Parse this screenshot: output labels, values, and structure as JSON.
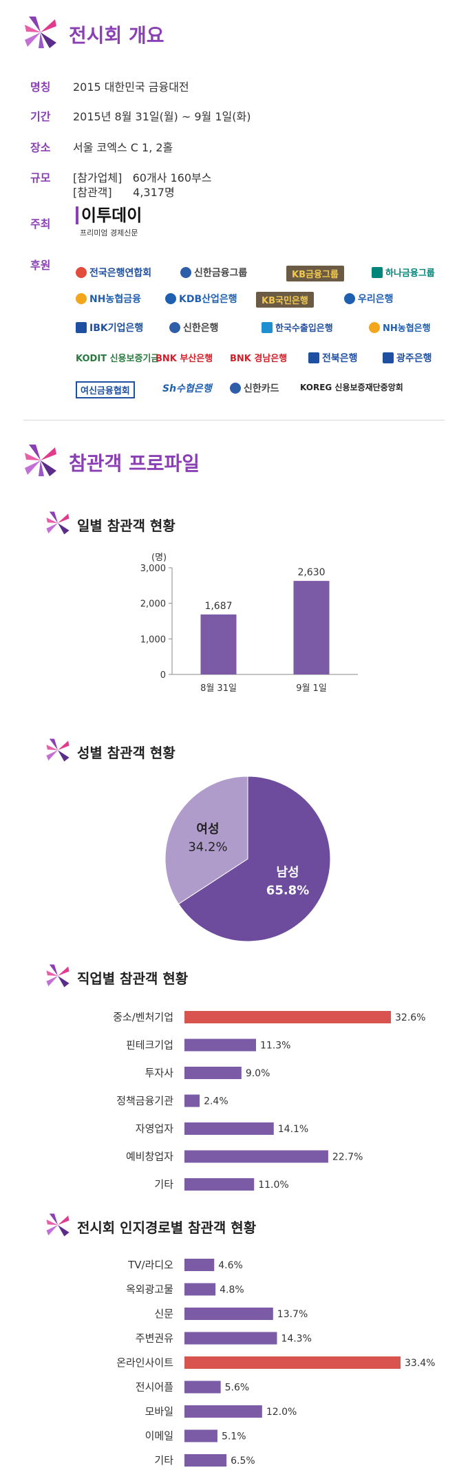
{
  "overview": {
    "title": "전시회 개요",
    "rows": [
      {
        "label": "명칭",
        "value": "2015 대한민국 금융대전"
      },
      {
        "label": "기간",
        "value": "2015년 8월 31일(월) ~ 9월 1일(화)"
      },
      {
        "label": "장소",
        "value": "서울 코엑스 C 1, 2홀"
      },
      {
        "label": "규모",
        "value": "[참가업체]   60개사 160부스"
      },
      {
        "label": "",
        "value": "[참관객]      4,317명"
      },
      {
        "label": "주최",
        "value": ""
      },
      {
        "label": "후원",
        "value": ""
      }
    ],
    "organizer": {
      "name": "이투데이",
      "tagline": "프리미엄 경제신문"
    },
    "sponsors": [
      {
        "name": "전국은행연합회",
        "color": "#1f4fa0"
      },
      {
        "name": "신한금융그룹",
        "color": "#444444"
      },
      {
        "name": "KB금융그룹",
        "color": "#7a6a4f"
      },
      {
        "name": "하나금융그룹",
        "color": "#00857a"
      },
      {
        "name": "NH농협금융",
        "color": "#1f5fb0"
      },
      {
        "name": "KDB산업은행",
        "color": "#1f5fb0"
      },
      {
        "name": "KB국민은행",
        "color": "#7a6a4f"
      },
      {
        "name": "우리은행",
        "color": "#1f5fb0"
      },
      {
        "name": "IBK기업은행",
        "color": "#1f4fa0"
      },
      {
        "name": "신한은행",
        "color": "#444444"
      },
      {
        "name": "한국수출입은행",
        "color": "#1f4fa0"
      },
      {
        "name": "NH농협은행",
        "color": "#1f5fb0"
      },
      {
        "name": "KODIT 신용보증기금",
        "color": "#2a7a3f"
      },
      {
        "name": "BNK 부산은행",
        "color": "#d0202a"
      },
      {
        "name": "BNK 경남은행",
        "color": "#d0202a"
      },
      {
        "name": "전북은행",
        "color": "#1f4fa0"
      },
      {
        "name": "광주은행",
        "color": "#1f4fa0"
      },
      {
        "name": "여신금융협회",
        "color": "#1f4fa0"
      },
      {
        "name": "Sh수협은행",
        "color": "#1f5fb0"
      },
      {
        "name": "신한카드",
        "color": "#444444"
      },
      {
        "name": "KOREG 신용보증재단중앙회",
        "color": "#222222"
      }
    ]
  },
  "profile": {
    "title": "참관객 프로파일",
    "sub1": "일별 참관객 현황",
    "sub2": "성별 참관객 현황",
    "sub3": "직업별 참관객 현황",
    "sub4": "전시회 인지경로별 참관객 현황"
  },
  "colors": {
    "accent": "#8a3fb5",
    "bar": "#7b5aa6",
    "bar_highlight": "#d9534f",
    "pie_male": "#6d4c9e",
    "pie_female": "#b09ccb"
  },
  "chart_data": [
    {
      "type": "bar",
      "unit_label": "(명)",
      "categories": [
        "8월 31일",
        "9월 1일"
      ],
      "values": [
        1687,
        2630
      ],
      "value_labels": [
        "1,687",
        "2,630"
      ],
      "yticks": [
        "0",
        "1,000",
        "2,000",
        "3,000"
      ],
      "ylim": [
        0,
        3000
      ]
    },
    {
      "type": "pie",
      "slices": [
        {
          "name": "남성",
          "value": 65.8,
          "label": "65.8%"
        },
        {
          "name": "여성",
          "value": 34.2,
          "label": "34.2%"
        }
      ]
    },
    {
      "type": "bar",
      "orientation": "horizontal",
      "categories": [
        "중소/벤처기업",
        "핀테크기업",
        "투자사",
        "정책금융기관",
        "자영업자",
        "예비창업자",
        "기타"
      ],
      "values": [
        32.6,
        11.3,
        9.0,
        2.4,
        14.1,
        22.7,
        11.0
      ],
      "value_labels": [
        "32.6%",
        "11.3%",
        "9.0%",
        "2.4%",
        "14.1%",
        "22.7%",
        "11.0%"
      ],
      "highlight_index": 0
    },
    {
      "type": "bar",
      "orientation": "horizontal",
      "categories": [
        "TV/라디오",
        "옥외광고물",
        "신문",
        "주변권유",
        "온라인사이트",
        "전시어플",
        "모바일",
        "이메일",
        "기타"
      ],
      "values": [
        4.6,
        4.8,
        13.7,
        14.3,
        33.4,
        5.6,
        12.0,
        5.1,
        6.5
      ],
      "value_labels": [
        "4.6%",
        "4.8%",
        "13.7%",
        "14.3%",
        "33.4%",
        "5.6%",
        "12.0%",
        "5.1%",
        "6.5%"
      ],
      "highlight_index": 4
    }
  ]
}
